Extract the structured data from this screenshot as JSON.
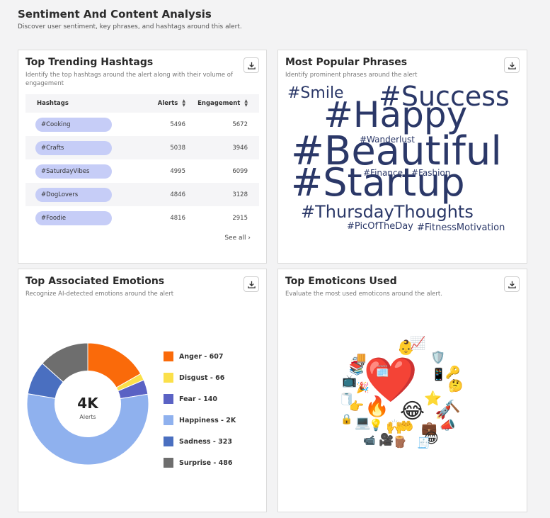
{
  "header": {
    "title": "Sentiment And Content Analysis",
    "subtitle": "Discover user sentiment, key phrases, and hashtags around this alert."
  },
  "hashtags_card": {
    "title": "Top Trending Hashtags",
    "subtitle": "Identify the top hashtags around the alert along with their volume of engagement",
    "columns": [
      "Hashtags",
      "Alerts",
      "Engagement"
    ],
    "rows": [
      {
        "tag": "#Cooking",
        "alerts": "5496",
        "engagement": "5672"
      },
      {
        "tag": "#Crafts",
        "alerts": "5038",
        "engagement": "3946"
      },
      {
        "tag": "#SaturdayVibes",
        "alerts": "4995",
        "engagement": "6099"
      },
      {
        "tag": "#DogLovers",
        "alerts": "4846",
        "engagement": "3128"
      },
      {
        "tag": "#Foodie",
        "alerts": "4816",
        "engagement": "2915"
      }
    ],
    "see_all": "See all"
  },
  "phrases_card": {
    "title": "Most Popular Phrases",
    "subtitle": "Identify prominent phrases around the alert",
    "words": [
      "#Smile",
      "#Success",
      "#Happy",
      "#Wanderlust",
      "#Beautiful",
      "#Finance",
      "#Fashion",
      "#Startup",
      "#ThursdayThoughts",
      "#PicOfTheDay",
      "#FitnessMotivation"
    ]
  },
  "emotions_card": {
    "title": "Top Associated Emotions",
    "subtitle": "Recognize AI-detected emotions around the alert",
    "center_value": "4K",
    "center_label": "Alerts",
    "legend": [
      {
        "label": "Anger - 607",
        "color": "#fa6a0a"
      },
      {
        "label": "Disgust - 66",
        "color": "#fbe04a"
      },
      {
        "label": "Fear - 140",
        "color": "#5a62c4"
      },
      {
        "label": "Happiness - 2K",
        "color": "#8fb1ee"
      },
      {
        "label": "Sadness - 323",
        "color": "#4a6fc0"
      },
      {
        "label": "Surprise - 486",
        "color": "#6e6e6e"
      }
    ]
  },
  "chart_data": {
    "type": "pie",
    "categories": [
      "Anger",
      "Disgust",
      "Fear",
      "Happiness",
      "Sadness",
      "Surprise"
    ],
    "values": [
      607,
      66,
      140,
      2000,
      323,
      486
    ],
    "colors": [
      "#fa6a0a",
      "#fbe04a",
      "#5a62c4",
      "#8fb1ee",
      "#4a6fc0",
      "#6e6e6e"
    ],
    "legend": "right"
  },
  "emoticons_card": {
    "title": "Top Emoticons Used",
    "subtitle": "Evaluate the most used emoticons around the alert.",
    "emoticons": [
      "❤️",
      "👶",
      "📈",
      "🚚",
      "🛡️",
      "📚",
      "🗓️",
      "📱",
      "🔑",
      "📺",
      "🎉",
      "🤔",
      "🧻",
      "👉",
      "🔥",
      "⭐",
      "😂",
      "🚀",
      "🔨",
      "🔒",
      "💻",
      "💡",
      "🙌",
      "🤲",
      "💼",
      "📣",
      "📹",
      "🎥",
      "🪵",
      "😁",
      "🧾"
    ]
  }
}
